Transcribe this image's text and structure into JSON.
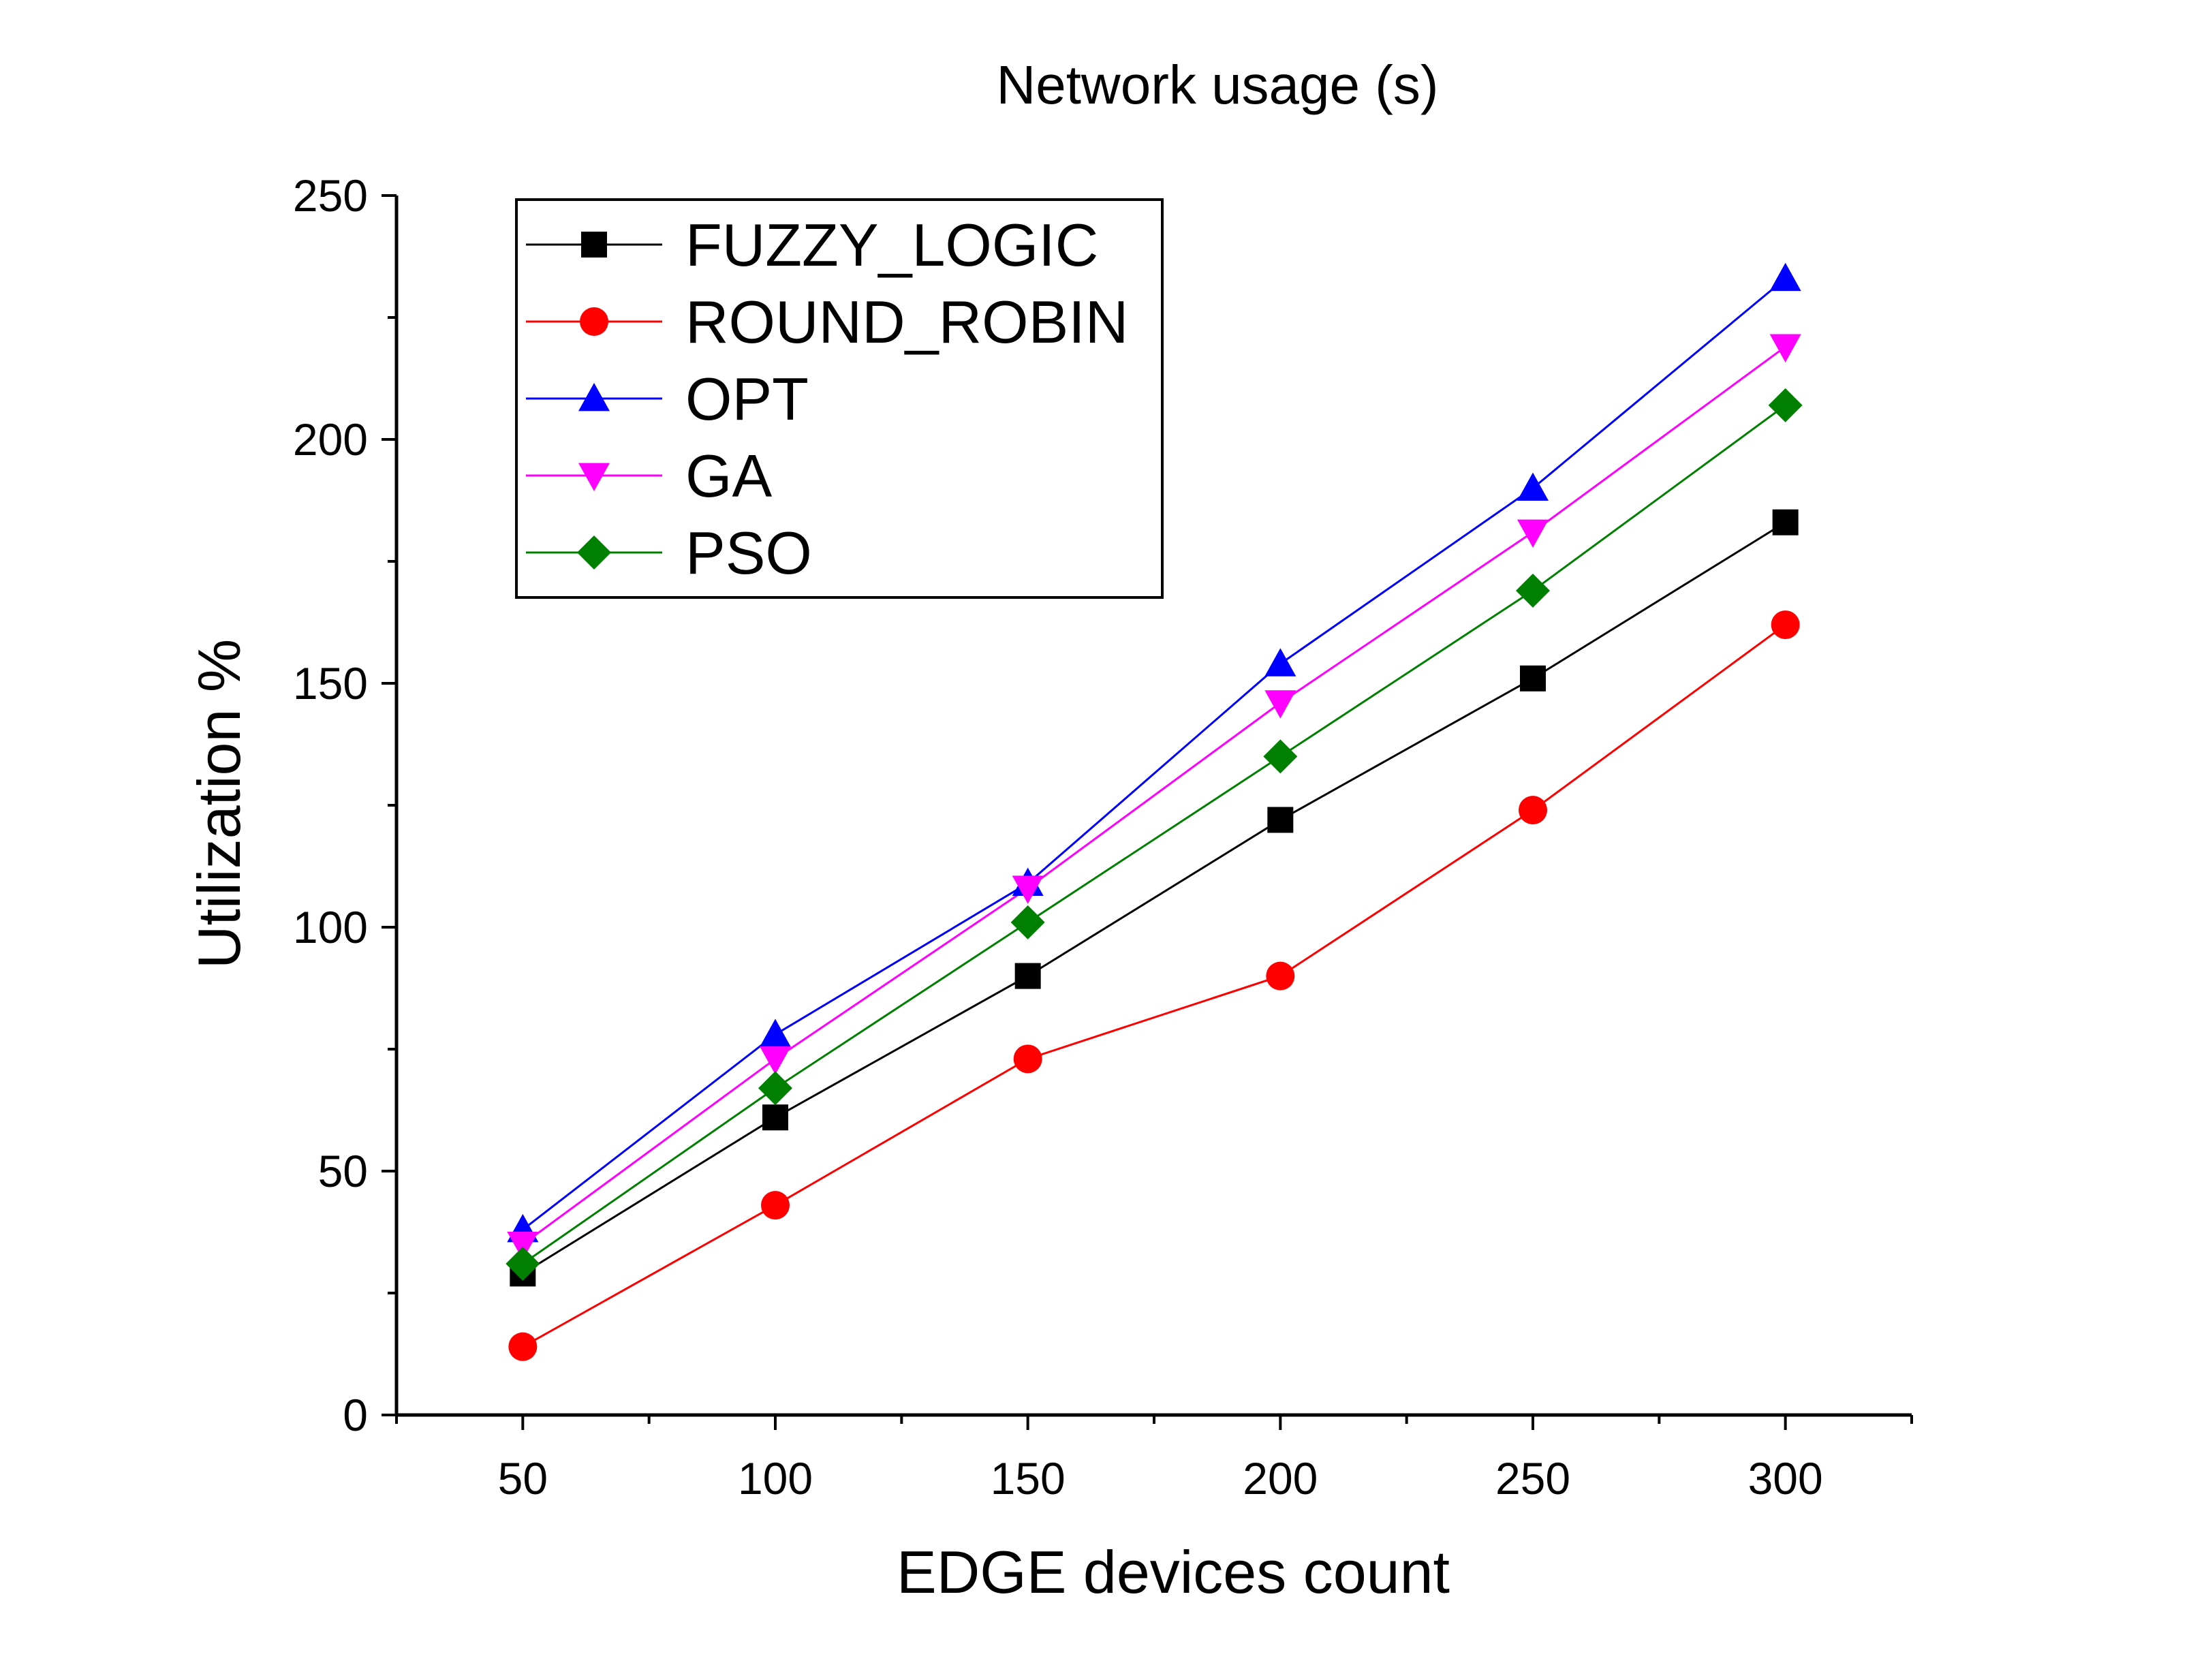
{
  "chart_data": {
    "type": "line",
    "title": "Network usage (s)",
    "xlabel": "EDGE devices count",
    "ylabel": "Utilization %",
    "x": [
      50,
      100,
      150,
      200,
      250,
      300
    ],
    "xlim": [
      25,
      325
    ],
    "ylim": [
      0,
      250
    ],
    "x_ticks": [
      50,
      100,
      150,
      200,
      250,
      300
    ],
    "y_ticks": [
      0,
      50,
      100,
      150,
      200,
      250
    ],
    "grid": false,
    "legend_position": "top-left",
    "series": [
      {
        "name": "FUZZY_LOGIC",
        "color": "#000000",
        "marker": "square",
        "values": [
          29,
          61,
          90,
          122,
          151,
          183
        ]
      },
      {
        "name": "ROUND_ROBIN",
        "color": "#ff0000",
        "marker": "circle",
        "values": [
          14,
          43,
          73,
          90,
          124,
          162
        ]
      },
      {
        "name": "OPT",
        "color": "#0000ff",
        "marker": "triangle-up",
        "values": [
          38,
          78,
          109,
          154,
          190,
          233
        ]
      },
      {
        "name": "GA",
        "color": "#ff00ff",
        "marker": "triangle-down",
        "values": [
          35,
          73,
          108,
          146,
          181,
          219
        ]
      },
      {
        "name": "PSO",
        "color": "#008000",
        "marker": "diamond",
        "values": [
          31,
          67,
          101,
          135,
          169,
          207
        ]
      }
    ]
  }
}
